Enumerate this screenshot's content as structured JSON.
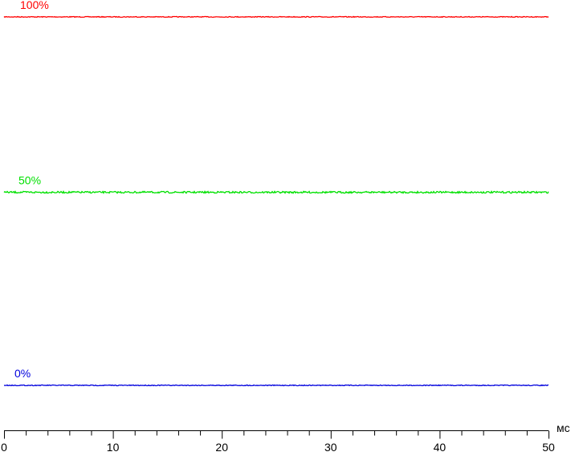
{
  "chart_data": {
    "type": "line",
    "title": "",
    "xlabel": "мс",
    "ylabel": "",
    "xlim": [
      0,
      50
    ],
    "ylim": [
      0,
      100
    ],
    "x_ticks": [
      "0",
      "10",
      "20",
      "30",
      "40",
      "50"
    ],
    "x_minor_step": 2,
    "grid": false,
    "series": [
      {
        "name": "100%",
        "level": 100,
        "x": [
          0,
          50
        ],
        "values": [
          100,
          100
        ],
        "color": "#ff0000"
      },
      {
        "name": "50%",
        "level": 50,
        "x": [
          0,
          50
        ],
        "values": [
          50,
          50
        ],
        "color": "#00e000"
      },
      {
        "name": "0%",
        "level": 0,
        "x": [
          0,
          50
        ],
        "values": [
          0,
          0
        ],
        "color": "#0000dd"
      }
    ]
  }
}
